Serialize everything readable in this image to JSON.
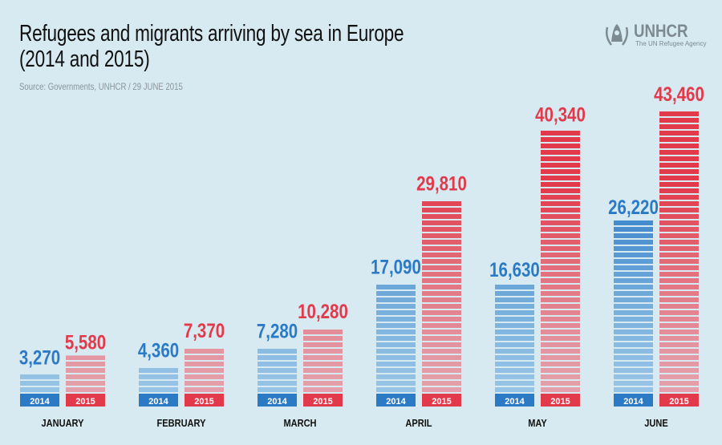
{
  "title_line1": "Refugees and migrants arriving by sea in Europe",
  "title_line2": "(2014 and 2015)",
  "source": "Source: Governments, UNHCR / 29 JUNE 2015",
  "logo": {
    "name": "UNHCR",
    "subtitle": "The UN Refugee Agency",
    "icon": "unhcr-emblem-icon"
  },
  "colors": {
    "2014": "#2b7ac6",
    "2015": "#e23a4b",
    "background": "#d7e9f1",
    "logo": "#7d8a90"
  },
  "chart_data": {
    "type": "bar",
    "title": "Refugees and migrants arriving by sea in Europe (2014 and 2015)",
    "categories": [
      "JANUARY",
      "FEBRUARY",
      "MARCH",
      "APRIL",
      "MAY",
      "JUNE"
    ],
    "series": [
      {
        "name": "2014",
        "values": [
          3270,
          4360,
          7280,
          17090,
          16630,
          26220
        ],
        "labels": [
          "3,270",
          "4,360",
          "7,280",
          "17,090",
          "16,630",
          "26,220"
        ]
      },
      {
        "name": "2015",
        "values": [
          5580,
          7370,
          10280,
          29810,
          40340,
          43460
        ],
        "labels": [
          "5,580",
          "7,370",
          "10,280",
          "29,810",
          "40,340",
          "43,460"
        ]
      }
    ],
    "ylim": [
      0,
      43460
    ],
    "grid": false,
    "legend": "under each bar"
  }
}
